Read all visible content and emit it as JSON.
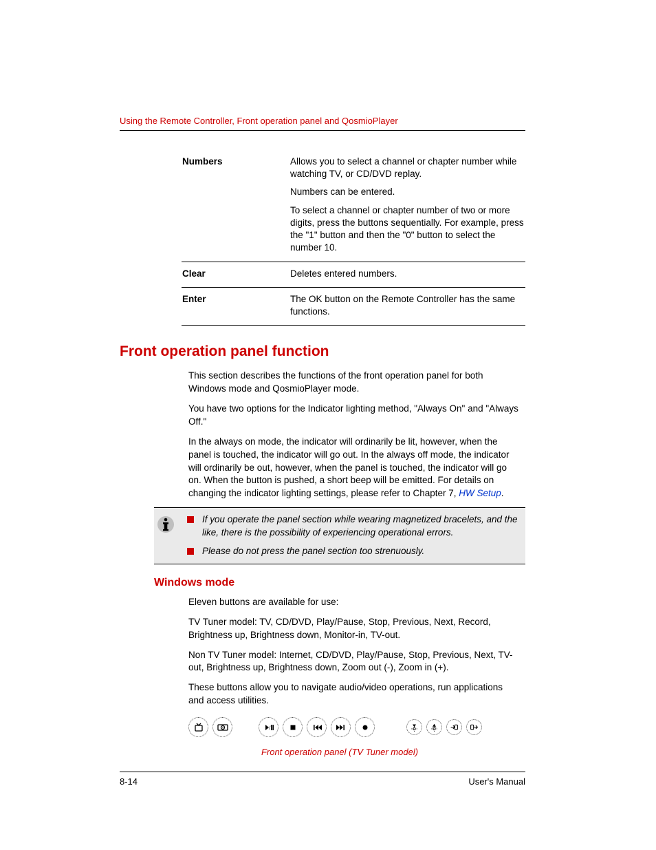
{
  "colors": {
    "accent": "#cc0000",
    "text": "#000000",
    "link": "#0033cc",
    "noteBg": "#eaeaea",
    "bulletRed": "#cc0000"
  },
  "typography": {
    "body_fontsize_pt": 10,
    "heading_fontsize_pt": 16,
    "subheading_fontsize_pt": 12
  },
  "header": {
    "running_title": "Using the Remote Controller, Front operation panel and QosmioPlayer"
  },
  "table": {
    "rows": [
      {
        "term": "Numbers",
        "paras": [
          "Allows you to select a channel or chapter number while watching TV, or CD/DVD replay.",
          "Numbers can be entered.",
          "To select a channel or chapter number of two or more digits, press the buttons sequentially. For example, press the \"1\" button and then the \"0\" button to select the number 10."
        ]
      },
      {
        "term": "Clear",
        "paras": [
          "Deletes entered numbers."
        ]
      },
      {
        "term": "Enter",
        "paras": [
          "The OK button on the Remote Controller has the same functions."
        ]
      }
    ]
  },
  "section": {
    "heading": "Front operation panel function",
    "intro": [
      "This section describes the functions of the front operation panel for both Windows mode and QosmioPlayer mode.",
      "You have two options for the Indicator lighting method, \"Always On\" and \"Always Off.\""
    ],
    "long_para_pre": "In the always on mode, the indicator will ordinarily be lit, however, when the panel is touched, the indicator will go out. In the always off mode, the indicator will ordinarily be out, however, when the panel is touched, the indicator will go on. When the button is pushed, a short beep will be emitted. For details on changing the indicator lighting settings, please refer to Chapter 7, ",
    "long_para_link": "HW Setup",
    "long_para_post": ".",
    "notes": [
      "If you operate the panel section while wearing magnetized bracelets, and the like, there is the possibility of experiencing operational errors.",
      "Please do not press the panel section too strenuously."
    ],
    "sub": {
      "heading": "Windows mode",
      "paras": [
        "Eleven buttons are available for use:",
        "TV Tuner model: TV, CD/DVD, Play/Pause, Stop, Previous, Next, Record, Brightness up, Brightness down, Monitor-in, TV-out.",
        "Non TV Tuner model: Internet, CD/DVD, Play/Pause, Stop, Previous, Next, TV-out, Brightness up, Brightness down, Zoom out (-), Zoom in (+).",
        "These buttons allow you to navigate audio/video operations, run applications and access utilities."
      ]
    },
    "figure_caption": "Front operation panel (TV Tuner model)"
  },
  "panel_buttons": [
    {
      "name": "tv-button",
      "glyph": "tv",
      "size": "big"
    },
    {
      "name": "cddvd-button",
      "glyph": "disc",
      "size": "big"
    },
    {
      "name": "gap",
      "glyph": "",
      "size": "gap-m"
    },
    {
      "name": "play-pause-button",
      "glyph": "playpause",
      "size": "big"
    },
    {
      "name": "stop-button",
      "glyph": "stop",
      "size": "big"
    },
    {
      "name": "previous-button",
      "glyph": "prev",
      "size": "big"
    },
    {
      "name": "next-button",
      "glyph": "next",
      "size": "big"
    },
    {
      "name": "record-button",
      "glyph": "rec",
      "size": "big"
    },
    {
      "name": "gap",
      "glyph": "",
      "size": "gap-l"
    },
    {
      "name": "brightness-down-button",
      "glyph": "bdown",
      "size": "small"
    },
    {
      "name": "brightness-up-button",
      "glyph": "bup",
      "size": "small"
    },
    {
      "name": "monitor-in-button",
      "glyph": "monin",
      "size": "small"
    },
    {
      "name": "tv-out-button",
      "glyph": "tvout",
      "size": "small"
    }
  ],
  "footer": {
    "page": "8-14",
    "doc": "User's Manual"
  }
}
